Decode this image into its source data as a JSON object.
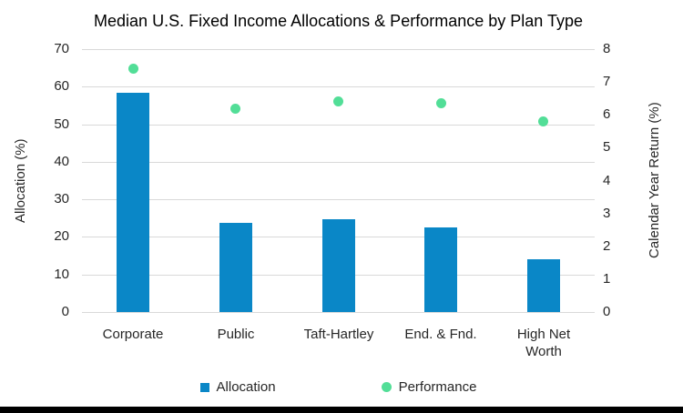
{
  "chart_data": {
    "type": "combo",
    "title": "Median U.S. Fixed Income Allocations & Performance by Plan Type",
    "categories": [
      "Corporate",
      "Public",
      "Taft-Hartley",
      "End. & Fnd.",
      "High Net Worth"
    ],
    "series": [
      {
        "name": "Allocation",
        "type": "bar",
        "axis": "left",
        "values": [
          58.4,
          23.7,
          24.8,
          22.5,
          14.1
        ],
        "color": "#0a87c7"
      },
      {
        "name": "Performance",
        "type": "scatter",
        "axis": "right",
        "values": [
          7.4,
          6.2,
          6.4,
          6.35,
          5.8
        ],
        "color": "#52de97"
      }
    ],
    "left_axis": {
      "label": "Allocation (%)",
      "min": 0,
      "max": 70,
      "tick_step": 10,
      "ticks": [
        0,
        10,
        20,
        30,
        40,
        50,
        60,
        70
      ]
    },
    "right_axis": {
      "label": "Calendar Year Return (%)",
      "min": 0,
      "max": 8,
      "tick_step": 1,
      "ticks": [
        0,
        1,
        2,
        3,
        4,
        5,
        6,
        7,
        8
      ]
    },
    "grid": true,
    "legend_position": "bottom"
  },
  "colors": {
    "gridline": "#d9d9d9",
    "footer_bar": "#000000",
    "background": "#ffffff"
  }
}
